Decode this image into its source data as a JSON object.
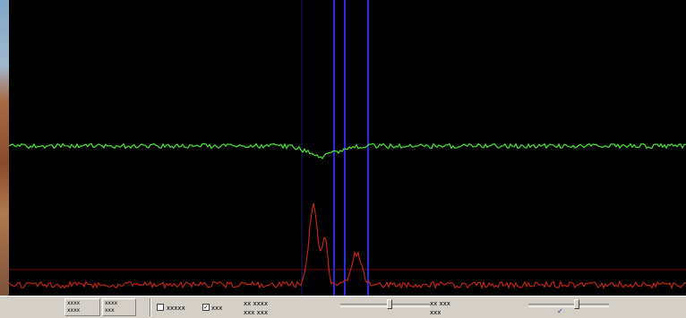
{
  "colors": {
    "background": "#000000",
    "upper_trace": "#4be83a",
    "lower_trace": "#c02418",
    "marker_lines": "#2a2ad8",
    "baseline": "#6a0c0c",
    "toolbar": "#d4d0c8"
  },
  "plot": {
    "upper_trace_icon": "green-noisy-trace",
    "lower_trace_icon": "red-peak-trace"
  },
  "toolbar": {
    "btn1": {
      "line1": "xxxx",
      "line2": "xxxx"
    },
    "btn2": {
      "line1": "xxxx",
      "line2": "xxx"
    },
    "check1_label": "xxxxx",
    "check2_label": "xxx",
    "readout": {
      "line1": "xx xxxx",
      "line2": "xxx xxx"
    },
    "slider1": {
      "level": 0.55
    },
    "value_text": {
      "line1": "xx xxx",
      "line2": "xxx"
    },
    "slider2": {
      "level": 0.6
    },
    "check3_checked": true
  }
}
